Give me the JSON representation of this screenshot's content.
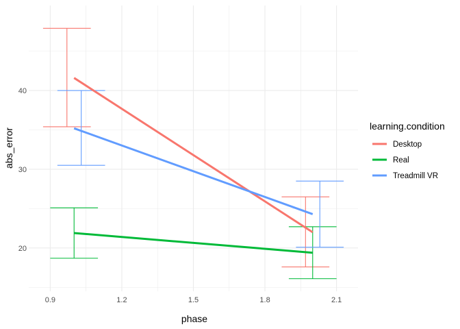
{
  "chart_data": {
    "type": "line",
    "xlabel": "phase",
    "ylabel": "abs_error",
    "xlim": [
      0.81,
      2.19
    ],
    "ylim": [
      14.5,
      50.8
    ],
    "xticks": [
      0.9,
      1.2,
      1.5,
      1.8,
      2.1
    ],
    "xtick_labels": [
      "0.9",
      "1.2",
      "1.5",
      "1.8",
      "2.1"
    ],
    "yticks": [
      20,
      30,
      40
    ],
    "ytick_labels": [
      "20",
      "30",
      "40"
    ],
    "grid": true,
    "legend": {
      "title": "learning.condition",
      "position": "right"
    },
    "series": [
      {
        "name": "Desktop",
        "color": "#F8766D",
        "x": [
          1,
          2
        ],
        "y": [
          41.6,
          22.0
        ],
        "error_x": [
          0.97,
          1.97
        ],
        "error_low": [
          35.4,
          17.6
        ],
        "error_high": [
          47.9,
          26.5
        ]
      },
      {
        "name": "Real",
        "color": "#00BA38",
        "x": [
          1,
          2
        ],
        "y": [
          21.9,
          19.4
        ],
        "error_x": [
          1.0,
          2.0
        ],
        "error_low": [
          18.7,
          16.1
        ],
        "error_high": [
          25.1,
          22.7
        ]
      },
      {
        "name": "Treadmill VR",
        "color": "#619CFF",
        "x": [
          1,
          2
        ],
        "y": [
          35.2,
          24.3
        ],
        "error_x": [
          1.03,
          2.03
        ],
        "error_low": [
          30.5,
          20.1
        ],
        "error_high": [
          40.0,
          28.5
        ]
      }
    ]
  }
}
